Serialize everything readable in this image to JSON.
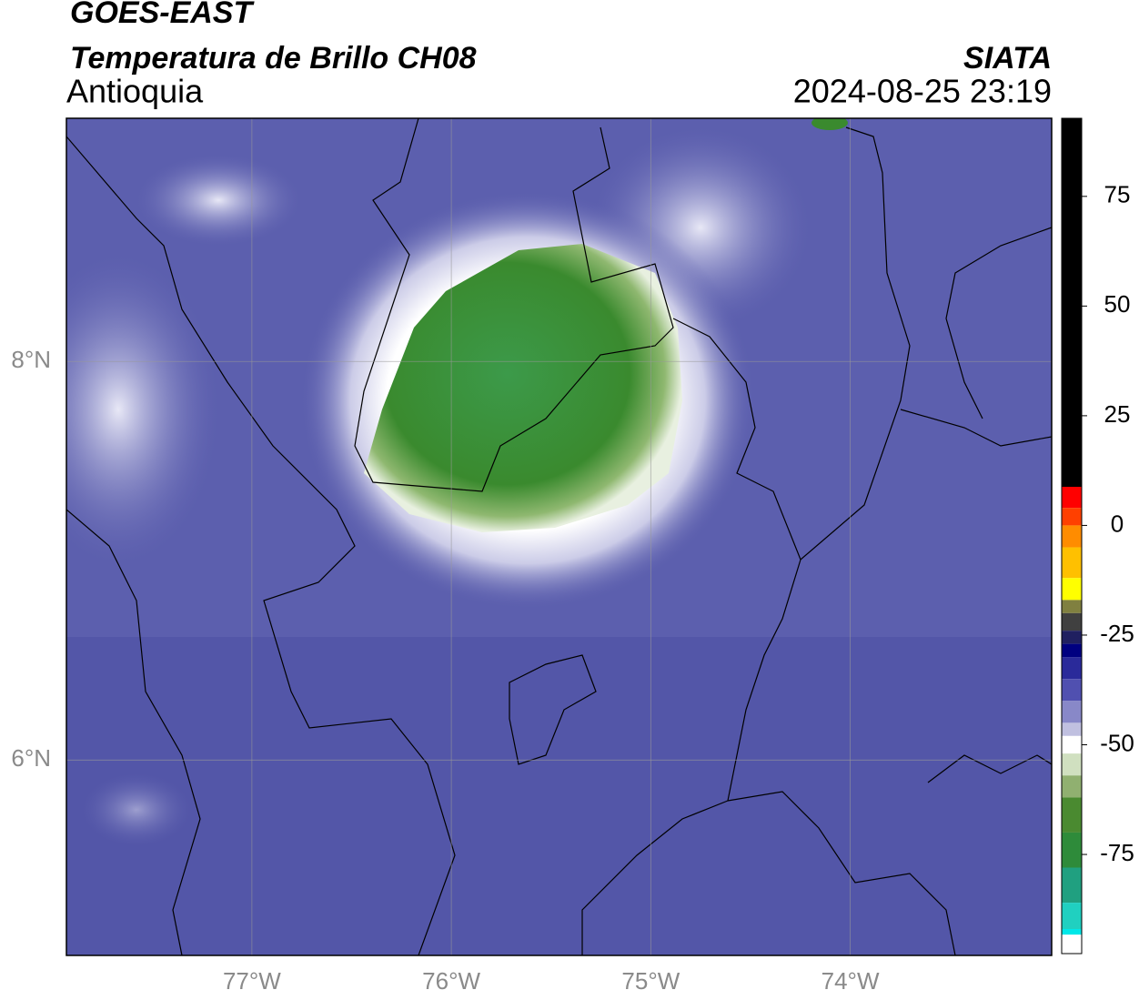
{
  "header": {
    "title": "GOES-EAST",
    "subtitle": "Temperatura de Brillo CH08",
    "region": "Antioquia",
    "source": "SIATA",
    "timestamp": "2024-08-25 23:19"
  },
  "map": {
    "xlim": [
      -77.93,
      -72.99
    ],
    "ylim": [
      5.02,
      9.22
    ],
    "xticks": [
      {
        "value": -77,
        "label": "77°W"
      },
      {
        "value": -76,
        "label": "76°W"
      },
      {
        "value": -75,
        "label": "75°W"
      },
      {
        "value": -74,
        "label": "74°W"
      }
    ],
    "yticks": [
      {
        "value": 6,
        "label": "6°N"
      },
      {
        "value": 8,
        "label": "8°N"
      }
    ],
    "grid": true
  },
  "colorbar": {
    "lim": [
      -97.6,
      92.8
    ],
    "ticks": [
      75,
      50,
      25,
      0,
      -25,
      -50,
      -75
    ],
    "stops": [
      {
        "value": 92.8,
        "color": "#000000"
      },
      {
        "value": 8.8,
        "color": "#ff0000"
      },
      {
        "value": 4,
        "color": "#ff4000"
      },
      {
        "value": 0,
        "color": "#ff8c00"
      },
      {
        "value": -5,
        "color": "#ffc000"
      },
      {
        "value": -12,
        "color": "#ffff00"
      },
      {
        "value": -17,
        "color": "#808040"
      },
      {
        "value": -20,
        "color": "#404040"
      },
      {
        "value": -24,
        "color": "#202060"
      },
      {
        "value": -27,
        "color": "#000080"
      },
      {
        "value": -30,
        "color": "#2a2a9a"
      },
      {
        "value": -35,
        "color": "#5050b0"
      },
      {
        "value": -40,
        "color": "#8888c8"
      },
      {
        "value": -45,
        "color": "#c0c0e0"
      },
      {
        "value": -48,
        "color": "#ffffff"
      },
      {
        "value": -52,
        "color": "#d0e0c0"
      },
      {
        "value": -57,
        "color": "#90b070"
      },
      {
        "value": -62,
        "color": "#4a8a30"
      },
      {
        "value": -70,
        "color": "#2e8b3a"
      },
      {
        "value": -78,
        "color": "#20a080"
      },
      {
        "value": -86,
        "color": "#20d0c0"
      },
      {
        "value": -92,
        "color": "#00e8e8"
      },
      {
        "value": -93.3,
        "color": "#ffffff"
      }
    ]
  }
}
